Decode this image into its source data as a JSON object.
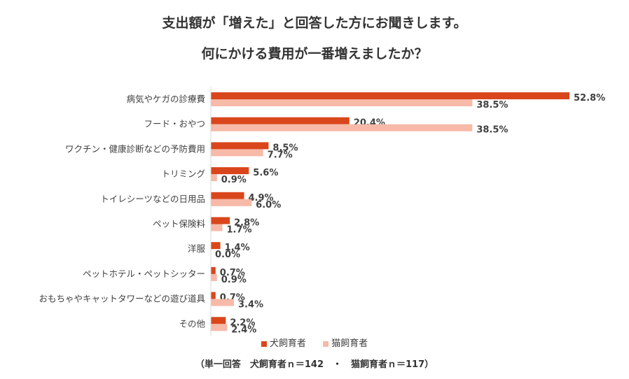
{
  "title_line1": "支出額が「増えた」と回答した方にお聞きします。",
  "title_line2": "何にかける費用が一番増えましたか？",
  "colors": {
    "dog": "#D9461C",
    "cat": "#F7B9A8"
  },
  "legend": {
    "dog": "犬飼育者",
    "cat": "猫飼育者"
  },
  "footnote": "（単一回答　犬飼育者ｎ＝142　・　猫飼育者ｎ＝117）",
  "chart_data": {
    "type": "bar",
    "orientation": "horizontal",
    "categories": [
      "病気やケガの診療費",
      "フード・おやつ",
      "ワクチン・健康診断などの予防費用",
      "トリミング",
      "トイレシーツなどの日用品",
      "ペット保険料",
      "洋服",
      "ペットホテル・ペットシッター",
      "おもちゃやキャットタワーなどの遊び道具",
      "その他"
    ],
    "series": [
      {
        "name": "犬飼育者",
        "values": [
          52.8,
          20.4,
          8.5,
          5.6,
          4.9,
          2.8,
          1.4,
          0.7,
          0.7,
          2.2
        ]
      },
      {
        "name": "猫飼育者",
        "values": [
          38.5,
          38.5,
          7.7,
          0.9,
          6.0,
          1.7,
          0.0,
          0.9,
          3.4,
          2.4
        ]
      }
    ],
    "value_suffix": "%",
    "grid": false,
    "legend_position": "bottom"
  }
}
